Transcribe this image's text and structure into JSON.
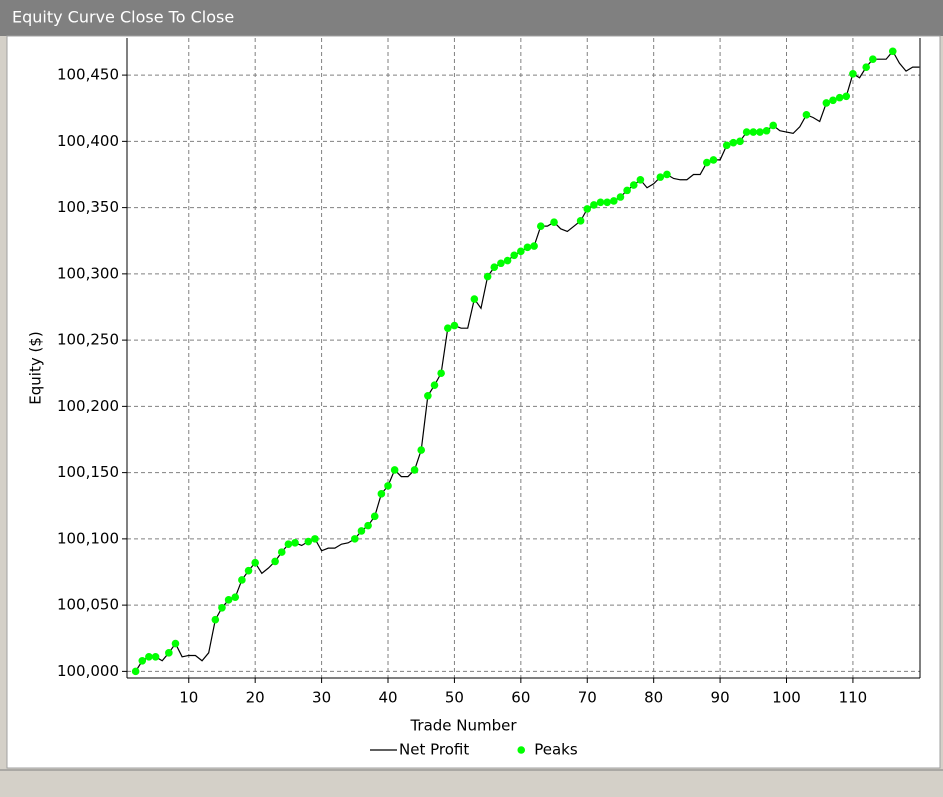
{
  "chart_data": {
    "type": "line",
    "title": "Equity Curve Close To Close",
    "x_label": "Trade Number",
    "y_label": "Equity ($)",
    "xlim": [
      0.7,
      120.1
    ],
    "xticks": [
      10,
      20,
      30,
      40,
      50,
      60,
      70,
      80,
      90,
      100,
      110
    ],
    "ylim": [
      99995,
      100478
    ],
    "yticks": [
      {
        "value": 100000,
        "label": "100,000"
      },
      {
        "value": 100050,
        "label": "100,050"
      },
      {
        "value": 100100,
        "label": "100,100"
      },
      {
        "value": 100150,
        "label": "100,150"
      },
      {
        "value": 100200,
        "label": "100,200"
      },
      {
        "value": 100250,
        "label": "100,250"
      },
      {
        "value": 100300,
        "label": "100,300"
      },
      {
        "value": 100350,
        "label": "100,350"
      },
      {
        "value": 100400,
        "label": "100,400"
      },
      {
        "value": 100450,
        "label": "100,450"
      }
    ],
    "grid": true,
    "legend": "bottom",
    "x": [
      2,
      3,
      4,
      5,
      6,
      7,
      8,
      9,
      10,
      11,
      12,
      13,
      14,
      15,
      16,
      17,
      18,
      19,
      20,
      21,
      22,
      23,
      24,
      25,
      26,
      27,
      28,
      29,
      30,
      31,
      32,
      33,
      34,
      35,
      36,
      37,
      38,
      39,
      40,
      41,
      42,
      43,
      44,
      45,
      46,
      47,
      48,
      49,
      50,
      51,
      52,
      53,
      54,
      55,
      56,
      57,
      58,
      59,
      60,
      61,
      62,
      63,
      64,
      65,
      66,
      67,
      68,
      69,
      70,
      71,
      72,
      73,
      74,
      75,
      76,
      77,
      78,
      79,
      80,
      81,
      82,
      83,
      84,
      85,
      86,
      87,
      88,
      89,
      90,
      91,
      92,
      93,
      94,
      95,
      96,
      97,
      98,
      99,
      100,
      101,
      102,
      103,
      104,
      105,
      106,
      107,
      108,
      109,
      110,
      111,
      112,
      113,
      114,
      115,
      116,
      117,
      118,
      119,
      120
    ],
    "series": [
      {
        "name": "Net Profit",
        "color": "#000000",
        "mark": "line",
        "values": [
          100000,
          100008,
          100011,
          100011,
          100008,
          100014,
          100021,
          100011,
          100012,
          100012,
          100008,
          100014,
          100039,
          100048,
          100054,
          100056,
          100069,
          100076,
          100082,
          100074,
          100078,
          100083,
          100090,
          100096,
          100097,
          100095,
          100098,
          100100,
          100091,
          100093,
          100093,
          100096,
          100097,
          100100,
          100106,
          100110,
          100117,
          100134,
          100140,
          100152,
          100147,
          100147,
          100152,
          100167,
          100208,
          100216,
          100225,
          100259,
          100261,
          100259,
          100259,
          100281,
          100274,
          100298,
          100305,
          100308,
          100310,
          100314,
          100317,
          100320,
          100321,
          100336,
          100336,
          100339,
          100334,
          100332,
          100336,
          100340,
          100349,
          100352,
          100354,
          100354,
          100355,
          100358,
          100363,
          100367,
          100371,
          100365,
          100368,
          100373,
          100375,
          100372,
          100371,
          100371,
          100375,
          100375,
          100384,
          100386,
          100386,
          100397,
          100399,
          100400,
          100407,
          100407,
          100407,
          100408,
          100412,
          100408,
          100407,
          100406,
          100411,
          100420,
          100418,
          100415,
          100429,
          100431,
          100433,
          100434,
          100451,
          100448,
          100456,
          100462,
          100462,
          100462,
          100468,
          100459,
          100453,
          100456,
          100456
        ]
      },
      {
        "name": "Peaks",
        "color": "#00ff00",
        "mark": "point",
        "values": [
          100000,
          100008,
          100011,
          100011,
          null,
          100014,
          100021,
          null,
          null,
          null,
          null,
          null,
          100039,
          100048,
          100054,
          100056,
          100069,
          100076,
          100082,
          null,
          null,
          100083,
          100090,
          100096,
          100097,
          null,
          100098,
          100100,
          null,
          null,
          null,
          null,
          null,
          100100,
          100106,
          100110,
          100117,
          100134,
          100140,
          100152,
          null,
          null,
          100152,
          100167,
          100208,
          100216,
          100225,
          100259,
          100261,
          null,
          null,
          100281,
          null,
          100298,
          100305,
          100308,
          100310,
          100314,
          100317,
          100320,
          100321,
          100336,
          null,
          100339,
          null,
          null,
          null,
          100340,
          100349,
          100352,
          100354,
          100354,
          100355,
          100358,
          100363,
          100367,
          100371,
          null,
          null,
          100373,
          100375,
          null,
          null,
          null,
          null,
          null,
          100384,
          100386,
          null,
          100397,
          100399,
          100400,
          100407,
          100407,
          100407,
          100408,
          100412,
          null,
          null,
          null,
          null,
          100420,
          null,
          null,
          100429,
          100431,
          100433,
          100434,
          100451,
          null,
          100456,
          100462,
          null,
          null,
          100468,
          null,
          null,
          null,
          null
        ]
      }
    ]
  }
}
